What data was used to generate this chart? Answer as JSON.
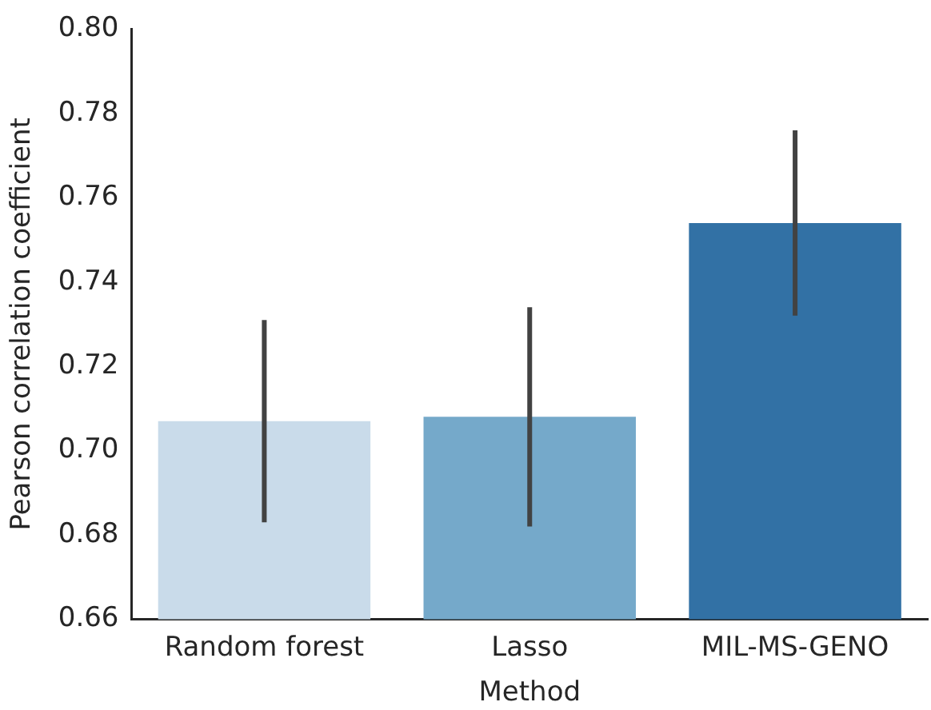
{
  "chart_data": {
    "type": "bar",
    "xlabel": "Method",
    "ylabel": "Pearson correlation coefficient",
    "categories": [
      "Random forest",
      "Lasso",
      "MIL-MS-GENO"
    ],
    "values": [
      0.707,
      0.708,
      0.754
    ],
    "colors": [
      "#c9dbea",
      "#75a9ca",
      "#3271a5"
    ],
    "errors": [
      [
        0.683,
        0.731
      ],
      [
        0.682,
        0.734
      ],
      [
        0.732,
        0.776
      ]
    ],
    "ylim": [
      0.66,
      0.8
    ],
    "yticks": [
      0.66,
      0.68,
      {
        "value": 0.7,
        "label": "0.70"
      },
      0.72,
      0.74,
      0.76,
      0.78,
      {
        "value": 0.8,
        "label": "0.80"
      }
    ],
    "grid": false,
    "legend": false
  }
}
